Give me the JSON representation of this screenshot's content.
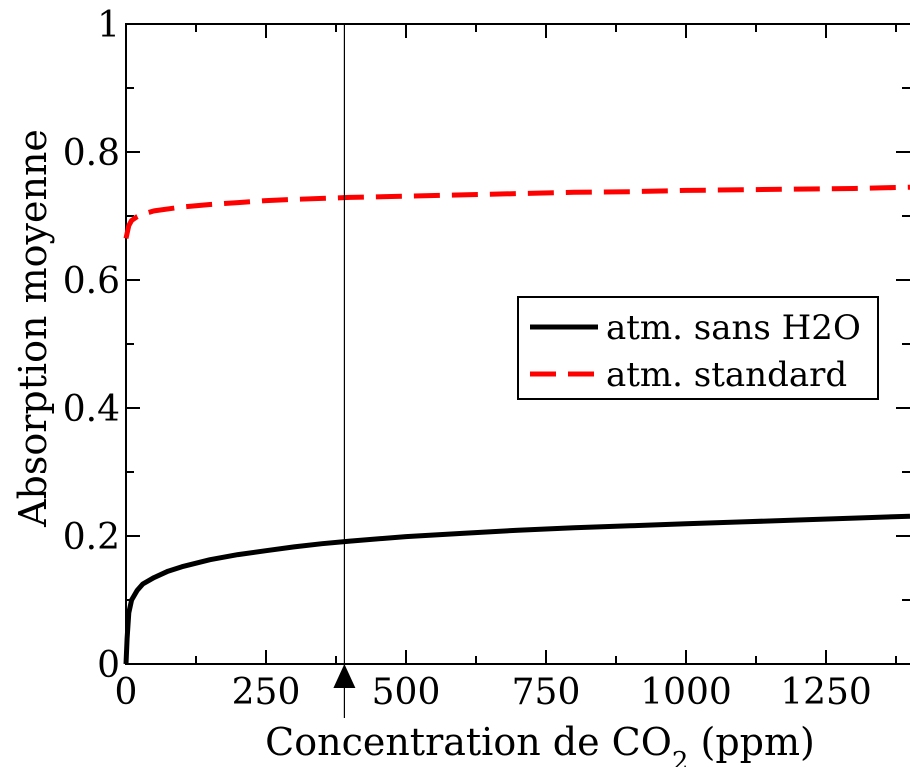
{
  "chart_data": {
    "type": "line",
    "title": "",
    "xlabel_main": "Concentration de CO",
    "xlabel_sub": "2",
    "xlabel_tail": " (ppm)",
    "ylabel": "Absorption moyenne",
    "xlim": [
      0,
      1400
    ],
    "ylim": [
      0,
      1
    ],
    "x_ticks": [
      0,
      250,
      500,
      750,
      1000,
      1250
    ],
    "x_tick_labels": [
      "0",
      "250",
      "500",
      "750",
      "1000",
      "1250"
    ],
    "y_ticks": [
      0,
      0.2,
      0.4,
      0.6,
      0.8,
      1
    ],
    "y_tick_labels": [
      "0",
      "0.2",
      "0.4",
      "0.6",
      "0.8",
      "1"
    ],
    "grid": false,
    "legend_position": "right",
    "marker": {
      "x": 390,
      "style": "vertical line with arrow"
    },
    "series": [
      {
        "name": "atm. sans H2O",
        "color": "#000000",
        "dash": "solid",
        "x": [
          0,
          2,
          5,
          10,
          20,
          30,
          50,
          75,
          100,
          150,
          200,
          250,
          300,
          350,
          400,
          500,
          600,
          700,
          800,
          900,
          1000,
          1100,
          1200,
          1300,
          1400
        ],
        "y": [
          0.0,
          0.04,
          0.08,
          0.1,
          0.115,
          0.125,
          0.135,
          0.145,
          0.152,
          0.163,
          0.171,
          0.177,
          0.183,
          0.188,
          0.192,
          0.199,
          0.204,
          0.209,
          0.213,
          0.216,
          0.219,
          0.222,
          0.225,
          0.228,
          0.231
        ]
      },
      {
        "name": "atm. standard",
        "color": "#ff0000",
        "dash": "dashed",
        "x": [
          0,
          5,
          10,
          20,
          30,
          50,
          100,
          150,
          200,
          250,
          300,
          400,
          500,
          600,
          700,
          800,
          900,
          1000,
          1100,
          1200,
          1300,
          1400
        ],
        "y": [
          0.665,
          0.685,
          0.693,
          0.699,
          0.703,
          0.708,
          0.714,
          0.718,
          0.721,
          0.724,
          0.726,
          0.729,
          0.731,
          0.733,
          0.735,
          0.737,
          0.738,
          0.74,
          0.741,
          0.742,
          0.743,
          0.745
        ]
      }
    ]
  }
}
